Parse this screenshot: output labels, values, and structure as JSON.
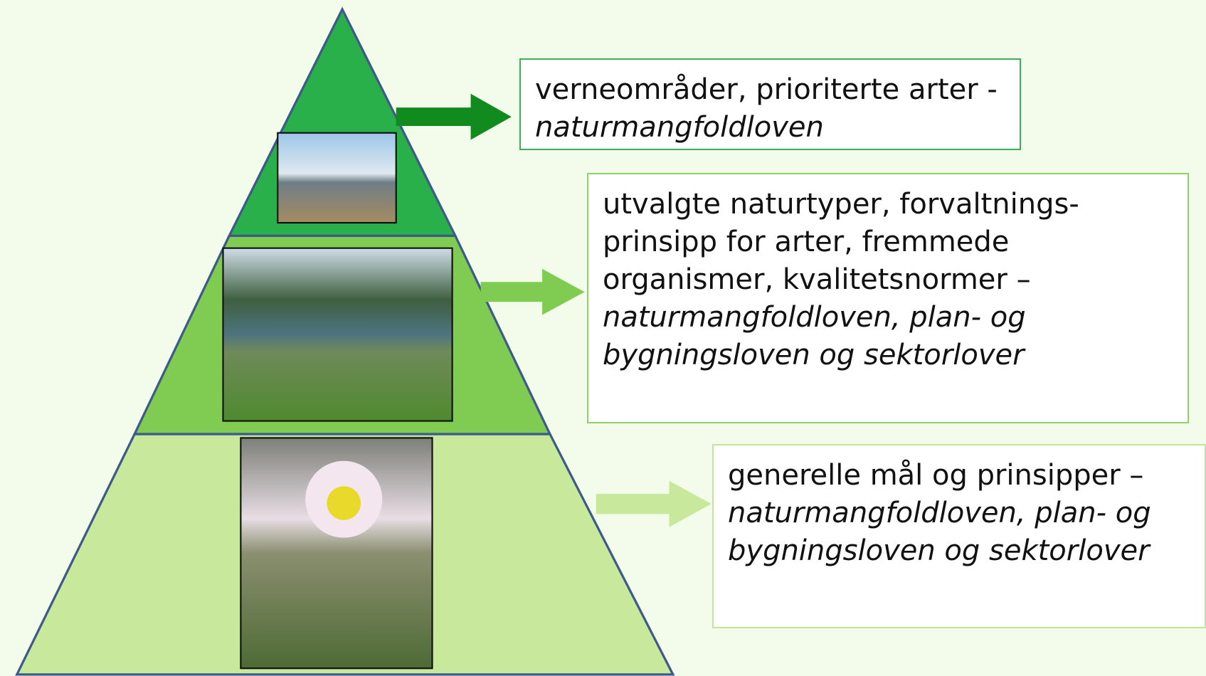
{
  "boxes": [
    {
      "plain": "verneområder, prioriterte arter - ",
      "italic": "naturmangfoldloven"
    },
    {
      "plain": "utvalgte naturtyper, forvaltnings-prinsipp for arter, fremmede organismer, kvalitetsnormer – ",
      "italic": "naturmangfoldloven, plan- og bygningsloven og sektorlover"
    },
    {
      "plain": "generelle mål og prinsipper – ",
      "italic": "naturmangfoldloven, plan- og bygningsloven og sektorlover"
    }
  ]
}
